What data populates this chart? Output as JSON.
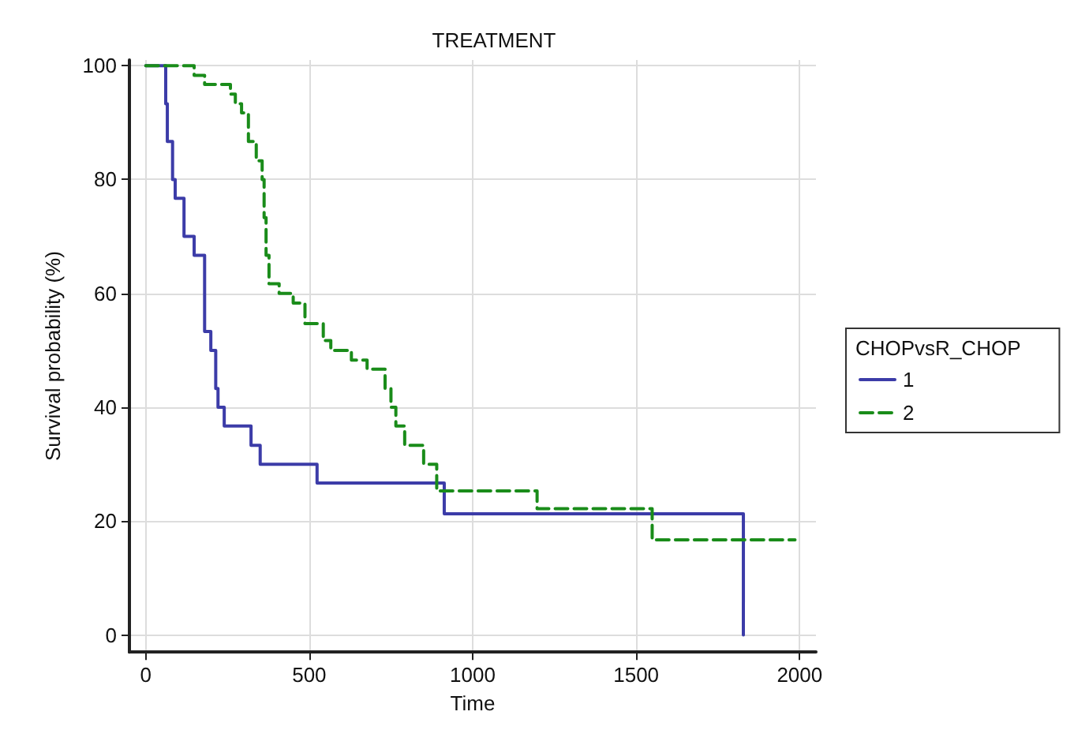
{
  "chart_data": {
    "type": "step",
    "title": "TREATMENT",
    "xlabel": "Time",
    "ylabel": "Survival probability (%)",
    "legend_title": "CHOPvsR_CHOP",
    "legend": "right",
    "grid": true,
    "marker": "none",
    "xlim": [
      -50,
      2050
    ],
    "ylim": [
      -3,
      101
    ],
    "xticks": [
      0,
      500,
      1000,
      1500,
      2000
    ],
    "yticks": [
      0,
      20,
      40,
      60,
      80,
      100
    ],
    "series": [
      {
        "name": "1",
        "color": "#3c3ca8",
        "line_style": "solid",
        "x": [
          0,
          54,
          61,
          66,
          82,
          90,
          117,
          148,
          180,
          199,
          214,
          221,
          240,
          322,
          350,
          524,
          913,
          1828
        ],
        "values": [
          100,
          100,
          93.3,
          86.7,
          80,
          76.7,
          70,
          66.7,
          53.3,
          50,
          43.3,
          40,
          36.7,
          33.3,
          30,
          26.7,
          21.3,
          0
        ]
      },
      {
        "name": "2",
        "color": "#1a8c1a",
        "line_style": "dashed",
        "x": [
          0,
          148,
          180,
          259,
          274,
          293,
          314,
          338,
          356,
          362,
          368,
          377,
          408,
          451,
          487,
          543,
          566,
          629,
          677,
          732,
          750,
          765,
          792,
          850,
          890,
          1197,
          1549,
          1986
        ],
        "values": [
          100,
          98.3,
          96.7,
          95,
          93.3,
          91.7,
          86.7,
          83.3,
          80,
          73.3,
          66.7,
          61.7,
          60,
          58.3,
          54.7,
          51.7,
          50,
          48.3,
          46.7,
          43.3,
          40,
          36.7,
          33.3,
          30,
          25.3,
          22.2,
          16.7,
          16.7
        ]
      }
    ]
  }
}
